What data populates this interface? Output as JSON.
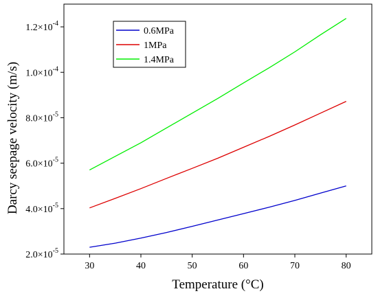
{
  "chart_data": {
    "type": "line",
    "title": "",
    "xlabel": "Temperature (°C)",
    "ylabel": "Darcy seepage velocity (m/s)",
    "xlim": [
      25,
      85
    ],
    "ylim": [
      2e-05,
      0.00013
    ],
    "x_ticks": [
      30,
      40,
      50,
      60,
      70,
      80
    ],
    "x_tick_labels": [
      "30",
      "40",
      "50",
      "60",
      "70",
      "80"
    ],
    "y_ticks": [
      2e-05,
      4e-05,
      6e-05,
      8e-05,
      0.0001,
      0.00012
    ],
    "y_tick_labels": [
      {
        "mant": "2.0×10",
        "exp": "-5"
      },
      {
        "mant": "4.0×10",
        "exp": "-5"
      },
      {
        "mant": "6.0×10",
        "exp": "-5"
      },
      {
        "mant": "8.0×10",
        "exp": "-5"
      },
      {
        "mant": "1.0×10",
        "exp": "-4"
      },
      {
        "mant": "1.2×10",
        "exp": "-4"
      }
    ],
    "grid": false,
    "legend_position": "top-left",
    "x": [
      30,
      35,
      40,
      45,
      50,
      55,
      60,
      65,
      70,
      75,
      80
    ],
    "series": [
      {
        "name": "0.6MPa",
        "color": "#0000cc",
        "values": [
          2.3e-05,
          2.48e-05,
          2.7e-05,
          2.95e-05,
          3.22e-05,
          3.5e-05,
          3.78e-05,
          4.06e-05,
          4.36e-05,
          4.68e-05,
          5e-05
        ]
      },
      {
        "name": "1MPa",
        "color": "#dd0000",
        "values": [
          4.03e-05,
          4.45e-05,
          4.88e-05,
          5.33e-05,
          5.77e-05,
          6.22e-05,
          6.7e-05,
          7.18e-05,
          7.68e-05,
          8.2e-05,
          8.72e-05
        ]
      },
      {
        "name": "1.4MPa",
        "color": "#00ee00",
        "values": [
          5.7e-05,
          6.3e-05,
          6.9e-05,
          7.55e-05,
          8.2e-05,
          8.85e-05,
          9.53e-05,
          0.000102,
          0.000109,
          0.0001165,
          0.0001237
        ]
      }
    ]
  }
}
